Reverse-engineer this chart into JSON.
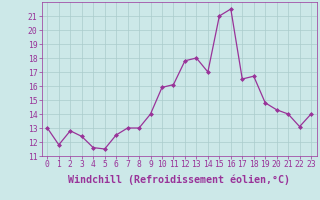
{
  "x": [
    0,
    1,
    2,
    3,
    4,
    5,
    6,
    7,
    8,
    9,
    10,
    11,
    12,
    13,
    14,
    15,
    16,
    17,
    18,
    19,
    20,
    21,
    22,
    23
  ],
  "y": [
    13.0,
    11.8,
    12.8,
    12.4,
    11.6,
    11.5,
    12.5,
    13.0,
    13.0,
    14.0,
    15.9,
    16.1,
    17.8,
    18.0,
    17.0,
    21.0,
    21.5,
    16.5,
    16.7,
    14.8,
    14.3,
    14.0,
    13.1,
    14.0
  ],
  "xlim": [
    -0.5,
    23.5
  ],
  "ylim": [
    11,
    22
  ],
  "yticks": [
    11,
    12,
    13,
    14,
    15,
    16,
    17,
    18,
    19,
    20,
    21
  ],
  "xticks": [
    0,
    1,
    2,
    3,
    4,
    5,
    6,
    7,
    8,
    9,
    10,
    11,
    12,
    13,
    14,
    15,
    16,
    17,
    18,
    19,
    20,
    21,
    22,
    23
  ],
  "xlabel": "Windchill (Refroidissement éolien,°C)",
  "line_color": "#993399",
  "marker": "D",
  "marker_size": 2.0,
  "bg_color": "#cce8e8",
  "grid_color": "#aacccc",
  "tick_label_color": "#993399",
  "xlabel_color": "#993399",
  "font_size_ticks": 5.8,
  "font_size_xlabel": 7.2,
  "linewidth": 0.9
}
